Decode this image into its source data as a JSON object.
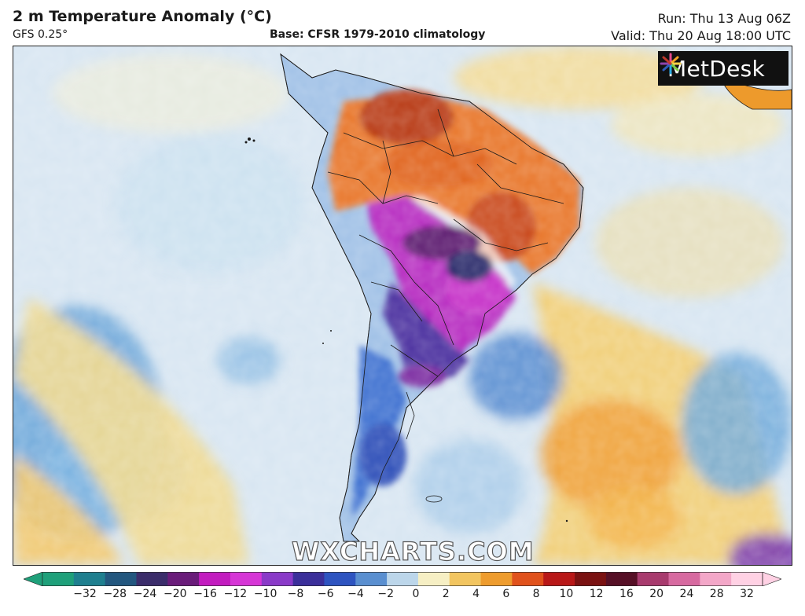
{
  "header": {
    "title": "2 m Temperature Anomaly (°C)",
    "subtitle": "GFS 0.25°",
    "base": "Base: CFSR 1979-2010 climatology",
    "run": "Run: Thu 13 Aug 06Z",
    "valid": "Valid: Thu 20 Aug 18:00 UTC"
  },
  "logo": {
    "text": "MetDesk",
    "icon": "metdesk-flower-icon"
  },
  "watermark": "WXCHARTS.COM",
  "colorbar": {
    "ticks": [
      "−32",
      "−28",
      "−24",
      "−20",
      "−16",
      "−12",
      "−10",
      "−8",
      "−6",
      "−4",
      "−2",
      "0",
      "2",
      "4",
      "6",
      "8",
      "10",
      "12",
      "16",
      "20",
      "24",
      "28",
      "32"
    ],
    "colors": [
      "#1fa07a",
      "#1f7f8f",
      "#23577f",
      "#3b2d6b",
      "#6a1c7a",
      "#c21cbf",
      "#d636d6",
      "#8a3ac8",
      "#3b2f9a",
      "#2e54c0",
      "#5a8fd0",
      "#bcd6ea",
      "#f6efc4",
      "#f2c560",
      "#ee9c2e",
      "#e0521c",
      "#b81818",
      "#7a1212",
      "#561026",
      "#a83b6e",
      "#d76aa0",
      "#f3a7c8",
      "#ffd1e4"
    ],
    "min_color": "#1fa07a",
    "max_color": "#ffd1e4"
  },
  "colors": {
    "ocean_base": "#dbe8f3",
    "warm_anomaly": "#e86a1c",
    "cold_anomaly": "#b21ab5"
  }
}
